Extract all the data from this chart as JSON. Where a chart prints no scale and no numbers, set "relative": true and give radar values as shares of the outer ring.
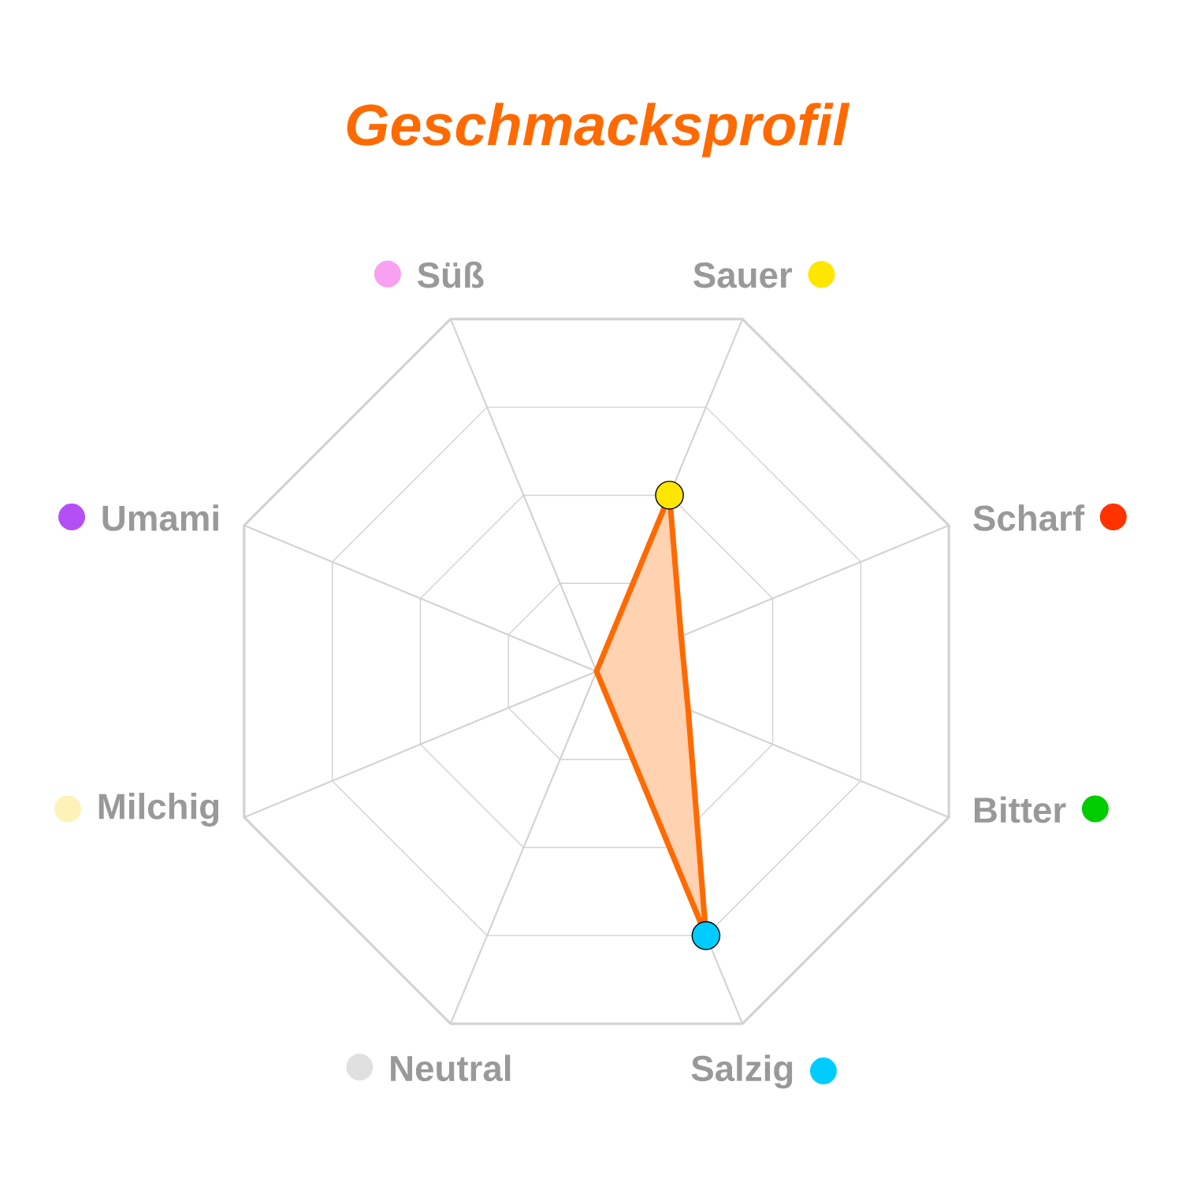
{
  "chart_data": {
    "type": "radar",
    "title": "Geschmacksprofil",
    "categories": [
      "Sauer",
      "Scharf",
      "Bitter",
      "Salzig",
      "Neutral",
      "Milchig",
      "Umami",
      "Süß"
    ],
    "colors": [
      "#ffe600",
      "#ff3300",
      "#00cc00",
      "#00ccff",
      "#e0e0e0",
      "#fdf3b8",
      "#b44ff5",
      "#f7a1f0"
    ],
    "series": [
      {
        "color": "#ff6a00",
        "values": [
          0.5,
          0.24,
          0.26,
          0.75,
          0,
          0,
          0,
          0
        ],
        "colors": [
          "#ffe600",
          null,
          null,
          "#00ccff",
          null,
          null,
          null,
          null
        ]
      }
    ],
    "relative": true,
    "grid": true,
    "marker": "circle"
  }
}
